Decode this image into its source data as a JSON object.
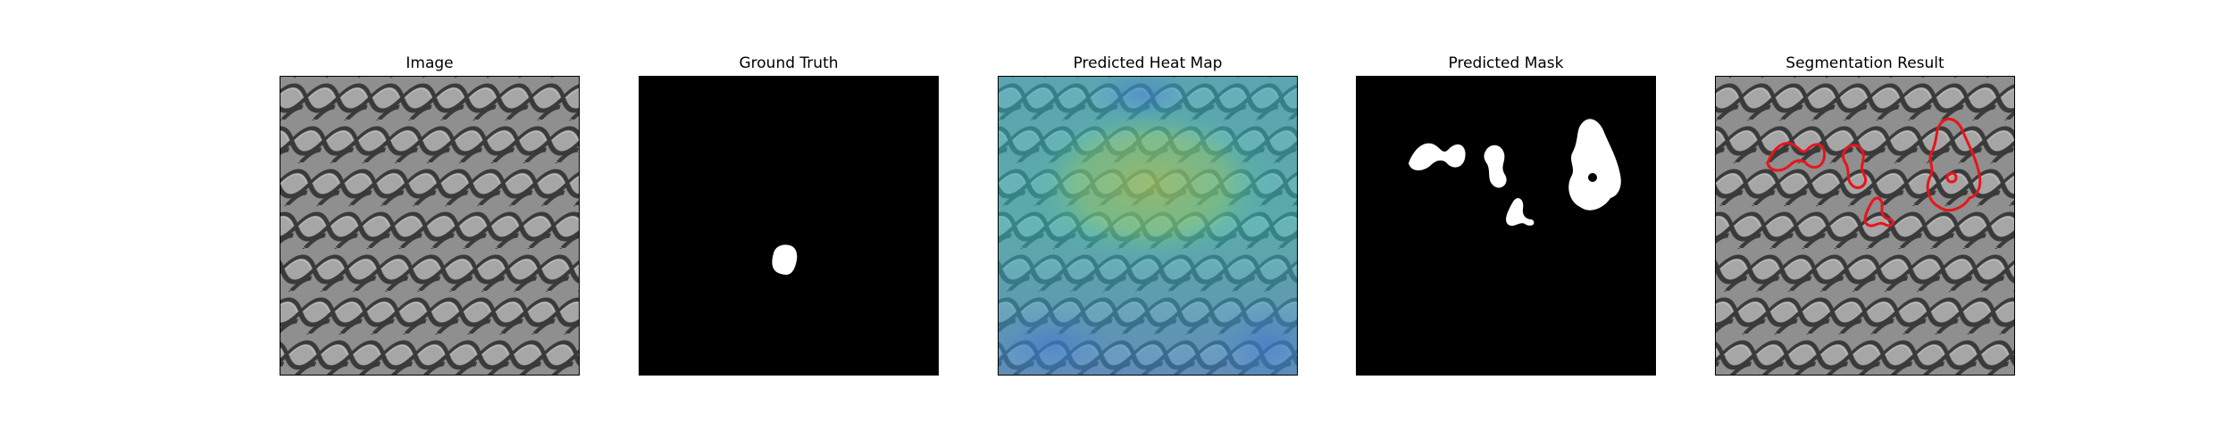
{
  "panels": [
    {
      "title": "Image"
    },
    {
      "title": "Ground Truth"
    },
    {
      "title": "Predicted Heat Map"
    },
    {
      "title": "Predicted Mask"
    },
    {
      "title": "Segmentation Result"
    }
  ],
  "colors": {
    "background": "#ffffff",
    "mesh_base": "#8f8f8f",
    "mesh_dark": "#3a3a3a",
    "mesh_light": "#b5b5b5",
    "mask_background": "#000000",
    "mask_foreground": "#ffffff",
    "contour": "#e8141b",
    "heat_low": "#3c8bd6",
    "heat_mid": "#33c0c0",
    "heat_high": "#c7c33a"
  }
}
